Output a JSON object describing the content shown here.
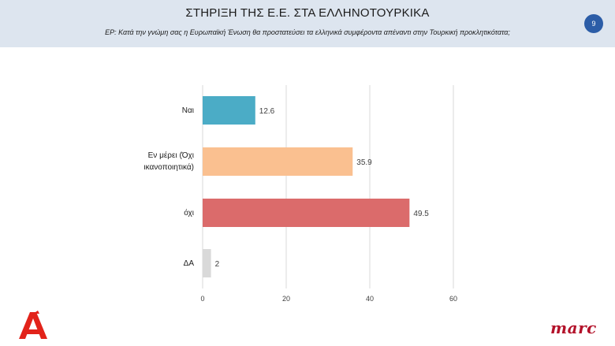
{
  "header": {
    "title": "ΣΤΗΡΙΞΗ ΤΗΣ Ε.Ε. ΣΤΑ ΕΛΛΗΝΟΤΟΥΡΚΙΚΑ",
    "subtitle": "ΕΡ: Κατά την γνώμη σας η Ευρωπαϊκή Ένωση  θα προστατεύσει τα ελληνικά συμφέροντα απέναντι στην Τουρκική προκλητικότατα;",
    "page_number": "9",
    "badge_color": "#2c5da7",
    "background_color": "#dde5ef"
  },
  "chart_data": {
    "type": "bar",
    "orientation": "horizontal",
    "categories": [
      "Ναι",
      "Εν μέρει  (Όχι ικανοποιητικά)",
      "όχι",
      "ΔΑ"
    ],
    "category_lines": [
      [
        "Ναι"
      ],
      [
        "Εν μέρει  (Όχι",
        "ικανοποιητικά)"
      ],
      [
        "όχι"
      ],
      [
        "ΔΑ"
      ]
    ],
    "values": [
      12.6,
      35.9,
      49.5,
      2
    ],
    "value_labels": [
      "12.6",
      "35.9",
      "49.5",
      "2"
    ],
    "colors": [
      "#4bacc6",
      "#fac090",
      "#db6b6b",
      "#d9d9d9"
    ],
    "xlim": [
      0,
      60
    ],
    "xticks": [
      "0",
      "20",
      "40",
      "60"
    ],
    "grid": true,
    "title": "",
    "xlabel": "",
    "ylabel": ""
  },
  "logos": {
    "left_logo": "Α",
    "left_logo_color": "#e2231a",
    "right_logo": "marc",
    "right_logo_color": "#b3122a"
  }
}
